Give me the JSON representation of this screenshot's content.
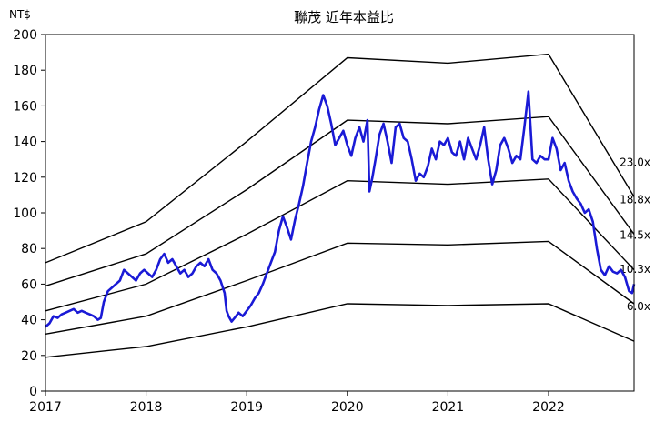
{
  "chart_data": {
    "type": "line",
    "title": "聯茂 近年本益比",
    "y_unit_label": "NT$",
    "xlim": [
      2017,
      2022.85
    ],
    "ylim": [
      0,
      200
    ],
    "x_ticks": [
      2017,
      2018,
      2019,
      2020,
      2021,
      2022
    ],
    "y_ticks": [
      0,
      20,
      40,
      60,
      80,
      100,
      120,
      140,
      160,
      180,
      200
    ],
    "colors": {
      "price": "#1a1ad6",
      "band": "#000000",
      "axis": "#000000"
    },
    "bands": [
      {
        "label": "23.0x",
        "points": [
          [
            2017,
            72
          ],
          [
            2018,
            95
          ],
          [
            2019,
            140
          ],
          [
            2020,
            187
          ],
          [
            2021,
            184
          ],
          [
            2022,
            189
          ],
          [
            2022.85,
            109
          ]
        ]
      },
      {
        "label": "18.8x",
        "points": [
          [
            2017,
            59
          ],
          [
            2018,
            77
          ],
          [
            2019,
            113
          ],
          [
            2020,
            152
          ],
          [
            2021,
            150
          ],
          [
            2022,
            154
          ],
          [
            2022.85,
            88
          ]
        ]
      },
      {
        "label": "14.5x",
        "points": [
          [
            2017,
            45
          ],
          [
            2018,
            60
          ],
          [
            2019,
            88
          ],
          [
            2020,
            118
          ],
          [
            2021,
            116
          ],
          [
            2022,
            119
          ],
          [
            2022.85,
            68
          ]
        ]
      },
      {
        "label": "10.3x",
        "points": [
          [
            2017,
            32
          ],
          [
            2018,
            42
          ],
          [
            2019,
            62
          ],
          [
            2020,
            83
          ],
          [
            2021,
            82
          ],
          [
            2022,
            84
          ],
          [
            2022.85,
            49
          ]
        ]
      },
      {
        "label": "6.0x",
        "points": [
          [
            2017,
            19
          ],
          [
            2018,
            25
          ],
          [
            2019,
            36
          ],
          [
            2020,
            49
          ],
          [
            2021,
            48
          ],
          [
            2022,
            49
          ],
          [
            2022.85,
            28
          ]
        ]
      }
    ],
    "price": {
      "points": [
        [
          2017.0,
          36
        ],
        [
          2017.04,
          38
        ],
        [
          2017.08,
          42
        ],
        [
          2017.12,
          41
        ],
        [
          2017.16,
          43
        ],
        [
          2017.2,
          44
        ],
        [
          2017.24,
          45
        ],
        [
          2017.28,
          46
        ],
        [
          2017.32,
          44
        ],
        [
          2017.36,
          45
        ],
        [
          2017.4,
          44
        ],
        [
          2017.44,
          43
        ],
        [
          2017.48,
          42
        ],
        [
          2017.52,
          40
        ],
        [
          2017.55,
          41
        ],
        [
          2017.58,
          50
        ],
        [
          2017.62,
          56
        ],
        [
          2017.66,
          58
        ],
        [
          2017.7,
          60
        ],
        [
          2017.74,
          62
        ],
        [
          2017.78,
          68
        ],
        [
          2017.82,
          66
        ],
        [
          2017.86,
          64
        ],
        [
          2017.9,
          62
        ],
        [
          2017.94,
          66
        ],
        [
          2017.98,
          68
        ],
        [
          2018.02,
          66
        ],
        [
          2018.06,
          64
        ],
        [
          2018.1,
          68
        ],
        [
          2018.14,
          74
        ],
        [
          2018.18,
          77
        ],
        [
          2018.22,
          72
        ],
        [
          2018.26,
          74
        ],
        [
          2018.3,
          70
        ],
        [
          2018.34,
          66
        ],
        [
          2018.38,
          68
        ],
        [
          2018.42,
          64
        ],
        [
          2018.46,
          66
        ],
        [
          2018.5,
          70
        ],
        [
          2018.54,
          72
        ],
        [
          2018.58,
          70
        ],
        [
          2018.62,
          74
        ],
        [
          2018.66,
          68
        ],
        [
          2018.7,
          66
        ],
        [
          2018.74,
          62
        ],
        [
          2018.78,
          55
        ],
        [
          2018.8,
          45
        ],
        [
          2018.82,
          42
        ],
        [
          2018.85,
          39
        ],
        [
          2018.88,
          41
        ],
        [
          2018.92,
          44
        ],
        [
          2018.96,
          42
        ],
        [
          2019.0,
          45
        ],
        [
          2019.04,
          48
        ],
        [
          2019.08,
          52
        ],
        [
          2019.12,
          55
        ],
        [
          2019.16,
          60
        ],
        [
          2019.2,
          66
        ],
        [
          2019.24,
          72
        ],
        [
          2019.28,
          78
        ],
        [
          2019.32,
          90
        ],
        [
          2019.36,
          98
        ],
        [
          2019.4,
          92
        ],
        [
          2019.44,
          85
        ],
        [
          2019.48,
          96
        ],
        [
          2019.52,
          105
        ],
        [
          2019.56,
          115
        ],
        [
          2019.6,
          128
        ],
        [
          2019.64,
          140
        ],
        [
          2019.68,
          148
        ],
        [
          2019.72,
          158
        ],
        [
          2019.76,
          166
        ],
        [
          2019.8,
          160
        ],
        [
          2019.84,
          150
        ],
        [
          2019.88,
          138
        ],
        [
          2019.92,
          142
        ],
        [
          2019.96,
          146
        ],
        [
          2020.0,
          138
        ],
        [
          2020.04,
          132
        ],
        [
          2020.08,
          142
        ],
        [
          2020.12,
          148
        ],
        [
          2020.16,
          140
        ],
        [
          2020.2,
          152
        ],
        [
          2020.22,
          112
        ],
        [
          2020.25,
          120
        ],
        [
          2020.28,
          130
        ],
        [
          2020.32,
          144
        ],
        [
          2020.36,
          150
        ],
        [
          2020.4,
          140
        ],
        [
          2020.44,
          128
        ],
        [
          2020.48,
          148
        ],
        [
          2020.52,
          150
        ],
        [
          2020.56,
          142
        ],
        [
          2020.6,
          140
        ],
        [
          2020.64,
          130
        ],
        [
          2020.68,
          118
        ],
        [
          2020.72,
          122
        ],
        [
          2020.76,
          120
        ],
        [
          2020.8,
          126
        ],
        [
          2020.84,
          136
        ],
        [
          2020.88,
          130
        ],
        [
          2020.92,
          140
        ],
        [
          2020.96,
          138
        ],
        [
          2021.0,
          142
        ],
        [
          2021.04,
          134
        ],
        [
          2021.08,
          132
        ],
        [
          2021.12,
          140
        ],
        [
          2021.16,
          130
        ],
        [
          2021.2,
          142
        ],
        [
          2021.24,
          136
        ],
        [
          2021.28,
          130
        ],
        [
          2021.32,
          138
        ],
        [
          2021.36,
          148
        ],
        [
          2021.4,
          130
        ],
        [
          2021.44,
          116
        ],
        [
          2021.48,
          124
        ],
        [
          2021.52,
          138
        ],
        [
          2021.56,
          142
        ],
        [
          2021.6,
          136
        ],
        [
          2021.64,
          128
        ],
        [
          2021.68,
          132
        ],
        [
          2021.72,
          130
        ],
        [
          2021.76,
          148
        ],
        [
          2021.8,
          168
        ],
        [
          2021.84,
          130
        ],
        [
          2021.88,
          128
        ],
        [
          2021.92,
          132
        ],
        [
          2021.96,
          130
        ],
        [
          2022.0,
          130
        ],
        [
          2022.04,
          142
        ],
        [
          2022.08,
          136
        ],
        [
          2022.12,
          124
        ],
        [
          2022.16,
          128
        ],
        [
          2022.2,
          118
        ],
        [
          2022.24,
          112
        ],
        [
          2022.28,
          108
        ],
        [
          2022.32,
          105
        ],
        [
          2022.36,
          100
        ],
        [
          2022.4,
          102
        ],
        [
          2022.44,
          95
        ],
        [
          2022.48,
          80
        ],
        [
          2022.52,
          68
        ],
        [
          2022.56,
          65
        ],
        [
          2022.6,
          70
        ],
        [
          2022.64,
          67
        ],
        [
          2022.68,
          66
        ],
        [
          2022.72,
          68
        ],
        [
          2022.76,
          64
        ],
        [
          2022.8,
          56
        ],
        [
          2022.83,
          55
        ],
        [
          2022.85,
          60
        ]
      ]
    }
  }
}
